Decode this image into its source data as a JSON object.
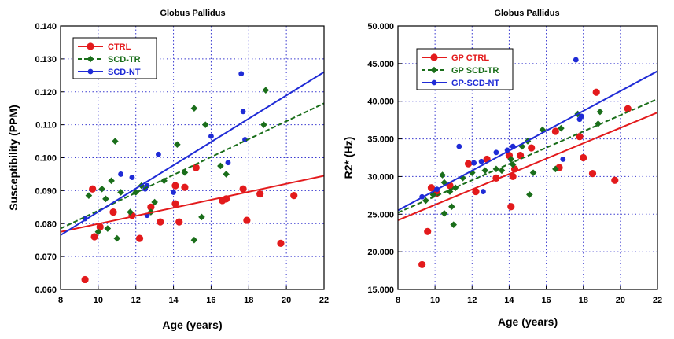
{
  "colors": {
    "ctrl": "#e31a1c",
    "tr": "#1a6e1a",
    "nt": "#1f2bd6",
    "grid": "#3a3ad0",
    "frame": "#000000"
  },
  "chart_data": [
    {
      "type": "scatter",
      "title": "Globus Pallidus",
      "xlabel": "Age (years)",
      "ylabel": "Susceptibility (PPM)",
      "xlim": [
        8,
        22
      ],
      "ylim": [
        0.06,
        0.14
      ],
      "xticks": [
        8,
        10,
        12,
        14,
        16,
        18,
        20,
        22
      ],
      "yticks": [
        0.06,
        0.07,
        0.08,
        0.09,
        0.1,
        0.11,
        0.12,
        0.13,
        0.14
      ],
      "ytick_labels": [
        "0.060",
        "0.070",
        "0.080",
        "0.090",
        "0.100",
        "0.110",
        "0.120",
        "0.130",
        "0.140"
      ],
      "legend_position": "top-left",
      "series": [
        {
          "name": "CTRL",
          "key": "ctrl",
          "marker": "circle",
          "line_style": "solid",
          "fit": {
            "x": [
              8,
              22
            ],
            "y": [
              0.0775,
              0.0945
            ]
          },
          "points": [
            [
              9.3,
              0.063
            ],
            [
              9.7,
              0.0905
            ],
            [
              9.8,
              0.076
            ],
            [
              10.1,
              0.079
            ],
            [
              10.8,
              0.0835
            ],
            [
              11.8,
              0.0825
            ],
            [
              12.2,
              0.0755
            ],
            [
              12.8,
              0.085
            ],
            [
              13.3,
              0.0805
            ],
            [
              14.1,
              0.0915
            ],
            [
              14.1,
              0.086
            ],
            [
              14.3,
              0.0805
            ],
            [
              14.6,
              0.091
            ],
            [
              15.2,
              0.097
            ],
            [
              16.6,
              0.087
            ],
            [
              16.8,
              0.0875
            ],
            [
              17.7,
              0.0905
            ],
            [
              17.9,
              0.081
            ],
            [
              18.6,
              0.089
            ],
            [
              19.7,
              0.074
            ],
            [
              20.4,
              0.0885
            ]
          ]
        },
        {
          "name": "SCD-TR",
          "key": "tr",
          "marker": "diamond",
          "line_style": "dashed",
          "fit": {
            "x": [
              8,
              22
            ],
            "y": [
              0.0785,
              0.1165
            ]
          },
          "points": [
            [
              9.5,
              0.0885
            ],
            [
              10.0,
              0.0775
            ],
            [
              10.2,
              0.0905
            ],
            [
              10.4,
              0.0875
            ],
            [
              10.5,
              0.0785
            ],
            [
              10.7,
              0.093
            ],
            [
              10.9,
              0.105
            ],
            [
              11.0,
              0.0755
            ],
            [
              11.2,
              0.0895
            ],
            [
              11.7,
              0.0835
            ],
            [
              12.0,
              0.0895
            ],
            [
              12.3,
              0.0915
            ],
            [
              12.8,
              0.0835
            ],
            [
              13.0,
              0.0865
            ],
            [
              13.5,
              0.093
            ],
            [
              14.2,
              0.104
            ],
            [
              14.6,
              0.0955
            ],
            [
              15.1,
              0.115
            ],
            [
              15.1,
              0.075
            ],
            [
              15.5,
              0.082
            ],
            [
              15.7,
              0.11
            ],
            [
              16.5,
              0.0975
            ],
            [
              16.8,
              0.095
            ],
            [
              18.8,
              0.11
            ],
            [
              18.9,
              0.1205
            ]
          ]
        },
        {
          "name": "SCD-NT",
          "key": "nt",
          "marker": "dot",
          "line_style": "solid",
          "fit": {
            "x": [
              8,
              22
            ],
            "y": [
              0.0765,
              0.126
            ]
          },
          "points": [
            [
              9.3,
              0.0815
            ],
            [
              11.2,
              0.095
            ],
            [
              11.8,
              0.094
            ],
            [
              12.5,
              0.0905
            ],
            [
              12.6,
              0.0915
            ],
            [
              12.6,
              0.0825
            ],
            [
              13.2,
              0.101
            ],
            [
              14.0,
              0.0895
            ],
            [
              16.0,
              0.1065
            ],
            [
              16.9,
              0.0985
            ],
            [
              17.6,
              0.1255
            ],
            [
              17.7,
              0.114
            ],
            [
              17.8,
              0.1055
            ]
          ]
        }
      ]
    },
    {
      "type": "scatter",
      "title": "Globus Pallidus",
      "xlabel": "Age (years)",
      "ylabel": "R2* (Hz)",
      "xlim": [
        8,
        22
      ],
      "ylim": [
        15,
        50
      ],
      "xticks": [
        8,
        10,
        12,
        14,
        16,
        18,
        20,
        22
      ],
      "yticks": [
        15,
        20,
        25,
        30,
        35,
        40,
        45,
        50
      ],
      "ytick_labels": [
        "15.000",
        "20.000",
        "25.000",
        "30.000",
        "35.000",
        "40.000",
        "45.000",
        "50.000"
      ],
      "legend_position": "top-left",
      "series": [
        {
          "name": "GP CTRL",
          "key": "ctrl",
          "marker": "circle",
          "line_style": "solid",
          "fit": {
            "x": [
              8,
              22
            ],
            "y": [
              24.2,
              38.5
            ]
          },
          "points": [
            [
              9.3,
              18.3
            ],
            [
              9.6,
              22.7
            ],
            [
              9.8,
              28.5
            ],
            [
              10.1,
              27.8
            ],
            [
              10.8,
              28.8
            ],
            [
              11.8,
              31.7
            ],
            [
              12.2,
              28.0
            ],
            [
              12.8,
              32.3
            ],
            [
              13.3,
              29.8
            ],
            [
              14.0,
              32.8
            ],
            [
              14.1,
              26.0
            ],
            [
              14.2,
              30.0
            ],
            [
              14.3,
              31.0
            ],
            [
              14.6,
              32.8
            ],
            [
              15.2,
              33.8
            ],
            [
              16.5,
              36.0
            ],
            [
              16.7,
              31.2
            ],
            [
              17.8,
              35.3
            ],
            [
              18.0,
              32.5
            ],
            [
              18.5,
              30.4
            ],
            [
              18.7,
              41.2
            ],
            [
              19.7,
              29.5
            ],
            [
              20.4,
              39.0
            ]
          ]
        },
        {
          "name": "GP SCD-TR",
          "key": "tr",
          "marker": "diamond",
          "line_style": "dashed",
          "fit": {
            "x": [
              8,
              22
            ],
            "y": [
              25.2,
              40.3
            ]
          },
          "points": [
            [
              9.5,
              26.8
            ],
            [
              9.9,
              27.6
            ],
            [
              10.4,
              30.2
            ],
            [
              10.5,
              29.2
            ],
            [
              10.5,
              25.1
            ],
            [
              10.8,
              28.0
            ],
            [
              10.9,
              26.0
            ],
            [
              11.0,
              23.6
            ],
            [
              11.1,
              28.5
            ],
            [
              11.5,
              29.8
            ],
            [
              12.0,
              30.5
            ],
            [
              12.7,
              30.8
            ],
            [
              13.3,
              31.0
            ],
            [
              13.6,
              30.8
            ],
            [
              14.1,
              32.3
            ],
            [
              14.2,
              31.6
            ],
            [
              14.7,
              34.0
            ],
            [
              15.0,
              34.7
            ],
            [
              15.1,
              27.6
            ],
            [
              15.3,
              30.5
            ],
            [
              15.8,
              36.2
            ],
            [
              16.5,
              31.0
            ],
            [
              16.8,
              36.4
            ],
            [
              17.7,
              38.3
            ],
            [
              18.8,
              37.0
            ],
            [
              18.9,
              38.6
            ]
          ]
        },
        {
          "name": "GP-SCD-NT",
          "key": "nt",
          "marker": "dot",
          "line_style": "solid",
          "fit": {
            "x": [
              8,
              22
            ],
            "y": [
              25.5,
              44.0
            ]
          },
          "points": [
            [
              9.3,
              27.3
            ],
            [
              10.1,
              28.3
            ],
            [
              11.3,
              34.0
            ],
            [
              12.1,
              31.8
            ],
            [
              12.5,
              32.0
            ],
            [
              12.6,
              28.0
            ],
            [
              13.3,
              33.2
            ],
            [
              13.9,
              33.5
            ],
            [
              14.2,
              34.0
            ],
            [
              16.9,
              32.3
            ],
            [
              17.6,
              45.5
            ],
            [
              17.8,
              37.6
            ],
            [
              17.9,
              38.0
            ]
          ]
        }
      ]
    }
  ]
}
